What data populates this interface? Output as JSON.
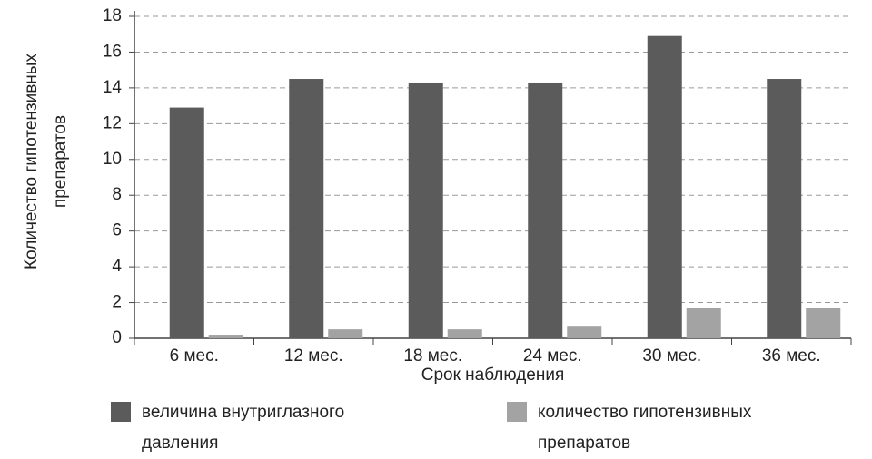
{
  "chart_data": {
    "type": "bar",
    "y_label": [
      "Количество гипотензивных",
      "препаратов"
    ],
    "x_label": "Срок наблюдения",
    "categories": [
      "6 мес.",
      "12 мес.",
      "18 мес.",
      "24 мес.",
      "30 мес.",
      "36 мес."
    ],
    "series": [
      {
        "name": "величина внутриглазного давления",
        "color": "#5b5b5b",
        "values": [
          12.9,
          14.5,
          14.3,
          14.3,
          16.9,
          14.5
        ]
      },
      {
        "name": "количество гипотензивных препаратов",
        "color": "#a3a3a3",
        "values": [
          0.2,
          0.5,
          0.5,
          0.7,
          1.7,
          1.7
        ]
      }
    ],
    "ylim": [
      0,
      18
    ],
    "yticks": [
      0,
      2,
      4,
      6,
      8,
      10,
      12,
      14,
      16,
      18
    ],
    "grid": true
  }
}
